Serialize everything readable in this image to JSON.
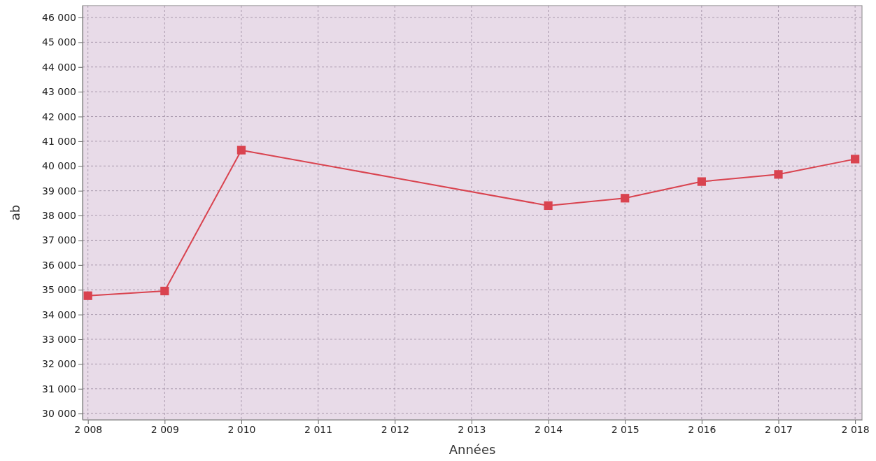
{
  "chart_data": {
    "type": "line",
    "xlabel": "Années",
    "ylabel": "ab",
    "x": [
      2008,
      2009,
      2010,
      2014,
      2015,
      2016,
      2017,
      2018
    ],
    "series": [
      {
        "color": "#d9434f",
        "values": [
          34760,
          34950,
          40640,
          38400,
          38700,
          39370,
          39660,
          40280
        ]
      }
    ],
    "xlim": [
      2007.93,
      2018.09
    ],
    "ylim": [
      29750,
      46480
    ],
    "xticks": [
      {
        "value": 2008,
        "label": "2 008"
      },
      {
        "value": 2009,
        "label": "2 009"
      },
      {
        "value": 2010,
        "label": "2 010"
      },
      {
        "value": 2011,
        "label": "2 011"
      },
      {
        "value": 2012,
        "label": "2 012"
      },
      {
        "value": 2013,
        "label": "2 013"
      },
      {
        "value": 2014,
        "label": "2 014"
      },
      {
        "value": 2015,
        "label": "2 015"
      },
      {
        "value": 2016,
        "label": "2 016"
      },
      {
        "value": 2017,
        "label": "2 017"
      },
      {
        "value": 2018,
        "label": "2 018"
      }
    ],
    "yticks": [
      {
        "value": 30000,
        "label": "30 000"
      },
      {
        "value": 31000,
        "label": "31 000"
      },
      {
        "value": 32000,
        "label": "32 000"
      },
      {
        "value": 33000,
        "label": "33 000"
      },
      {
        "value": 34000,
        "label": "34 000"
      },
      {
        "value": 35000,
        "label": "35 000"
      },
      {
        "value": 36000,
        "label": "36 000"
      },
      {
        "value": 37000,
        "label": "37 000"
      },
      {
        "value": 38000,
        "label": "38 000"
      },
      {
        "value": 39000,
        "label": "39 000"
      },
      {
        "value": 40000,
        "label": "40 000"
      },
      {
        "value": 41000,
        "label": "41 000"
      },
      {
        "value": 42000,
        "label": "42 000"
      },
      {
        "value": 43000,
        "label": "43 000"
      },
      {
        "value": 44000,
        "label": "44 000"
      },
      {
        "value": 45000,
        "label": "45 000"
      },
      {
        "value": 46000,
        "label": "46 000"
      }
    ],
    "grid": true,
    "marker": "square",
    "line_style": "solid"
  }
}
